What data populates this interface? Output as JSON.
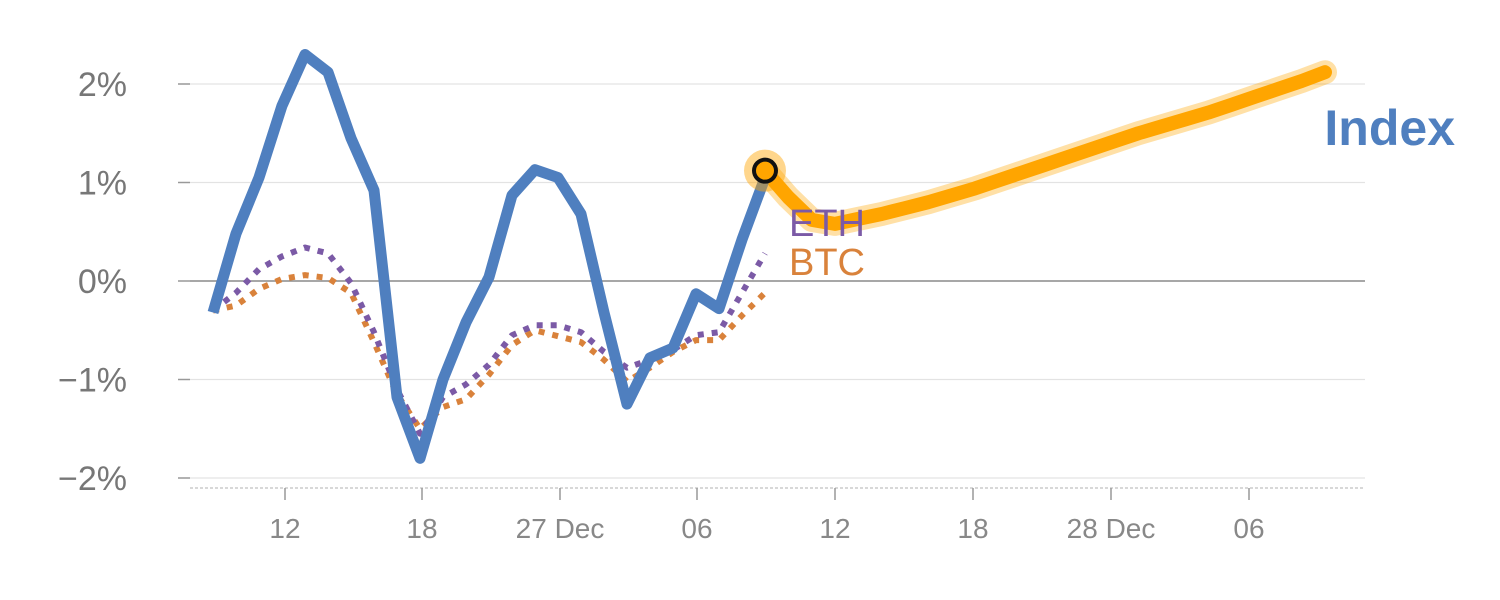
{
  "chart_data": {
    "type": "line",
    "y_unit": "%",
    "ylim": [
      -2.1,
      2.3
    ],
    "y_ticks": [
      {
        "value": 2,
        "label": "2%"
      },
      {
        "value": 1,
        "label": "1%"
      },
      {
        "value": 0,
        "label": "0%"
      },
      {
        "value": -1,
        "label": "−1%"
      },
      {
        "value": -2,
        "label": "−2%"
      }
    ],
    "x_ticks": [
      "12",
      "18",
      "27 Dec",
      "06",
      "12",
      "18",
      "28 Dec",
      "06"
    ],
    "grid": true,
    "series": [
      {
        "name": "Index",
        "style": "solid",
        "color": "#4f7fbf",
        "values": [
          -0.32,
          0.48,
          1.05,
          1.78,
          2.3,
          2.12,
          1.45,
          0.92,
          -1.18,
          -1.8,
          -1.0,
          -0.42,
          0.04,
          0.87,
          1.13,
          1.05,
          0.68,
          -0.32,
          -1.25,
          -0.78,
          -0.68,
          -0.13,
          -0.28,
          0.42,
          1.05
        ]
      },
      {
        "name": "ETH",
        "style": "dotted",
        "color": "#7b5aa6",
        "values": [
          -0.3,
          -0.12,
          0.12,
          0.25,
          0.34,
          0.28,
          -0.02,
          -0.52,
          -1.1,
          -1.55,
          -1.18,
          -1.05,
          -0.85,
          -0.55,
          -0.45,
          -0.45,
          -0.52,
          -0.72,
          -0.88,
          -0.8,
          -0.7,
          -0.55,
          -0.52,
          -0.12,
          0.28
        ]
      },
      {
        "name": "BTC",
        "style": "dotted",
        "color": "#d9823b",
        "values": [
          -0.3,
          -0.25,
          -0.08,
          0.02,
          0.06,
          0.03,
          -0.12,
          -0.62,
          -1.15,
          -1.5,
          -1.28,
          -1.2,
          -0.95,
          -0.65,
          -0.5,
          -0.56,
          -0.62,
          -0.8,
          -1.02,
          -0.88,
          -0.72,
          -0.6,
          -0.6,
          -0.35,
          -0.12
        ]
      }
    ],
    "projection": {
      "color": "#ffa500",
      "values": [
        1.12,
        0.85,
        0.62,
        0.58,
        0.63,
        0.68,
        0.74,
        0.8,
        0.87,
        0.94,
        1.02,
        1.1,
        1.18,
        1.26,
        1.34,
        1.42,
        1.5,
        1.57,
        1.64,
        1.71,
        1.79,
        1.87,
        1.95,
        2.03,
        2.12
      ]
    }
  }
}
